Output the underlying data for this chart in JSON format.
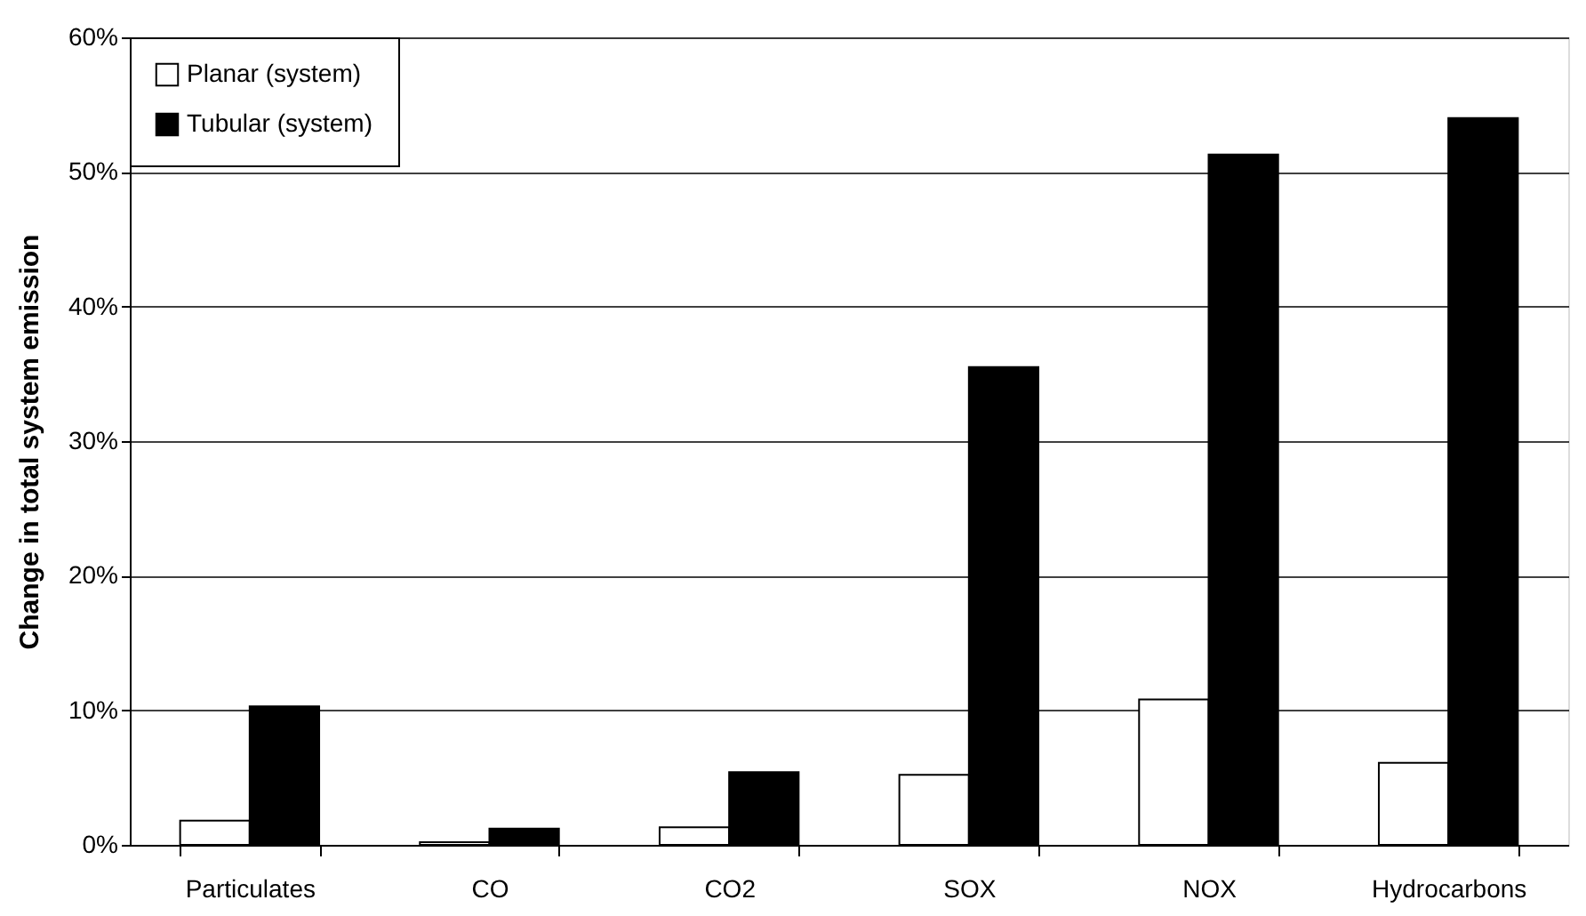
{
  "chart_data": {
    "type": "bar",
    "ylabel": "Change in total system emission",
    "categories": [
      "Particulates",
      "CO",
      "CO2",
      "SOX",
      "NOX",
      "Hydrocarbons"
    ],
    "series": [
      {
        "name": "Planar (system)",
        "color": "#ffffff",
        "values": [
          1.8,
          0.2,
          1.3,
          5.2,
          10.8,
          6.1
        ]
      },
      {
        "name": "Tubular (system)",
        "color": "#000000",
        "values": [
          10.3,
          1.2,
          5.4,
          35.5,
          51.3,
          54.0
        ]
      }
    ],
    "ylim": [
      0,
      60
    ],
    "yticks": [
      {
        "value": 0,
        "label": "0%"
      },
      {
        "value": 10,
        "label": "10%"
      },
      {
        "value": 20,
        "label": "20%"
      },
      {
        "value": 30,
        "label": "30%"
      },
      {
        "value": 40,
        "label": "40%"
      },
      {
        "value": 50,
        "label": "50%"
      },
      {
        "value": 60,
        "label": "60%"
      }
    ],
    "grid": "y",
    "legend": "top left"
  }
}
